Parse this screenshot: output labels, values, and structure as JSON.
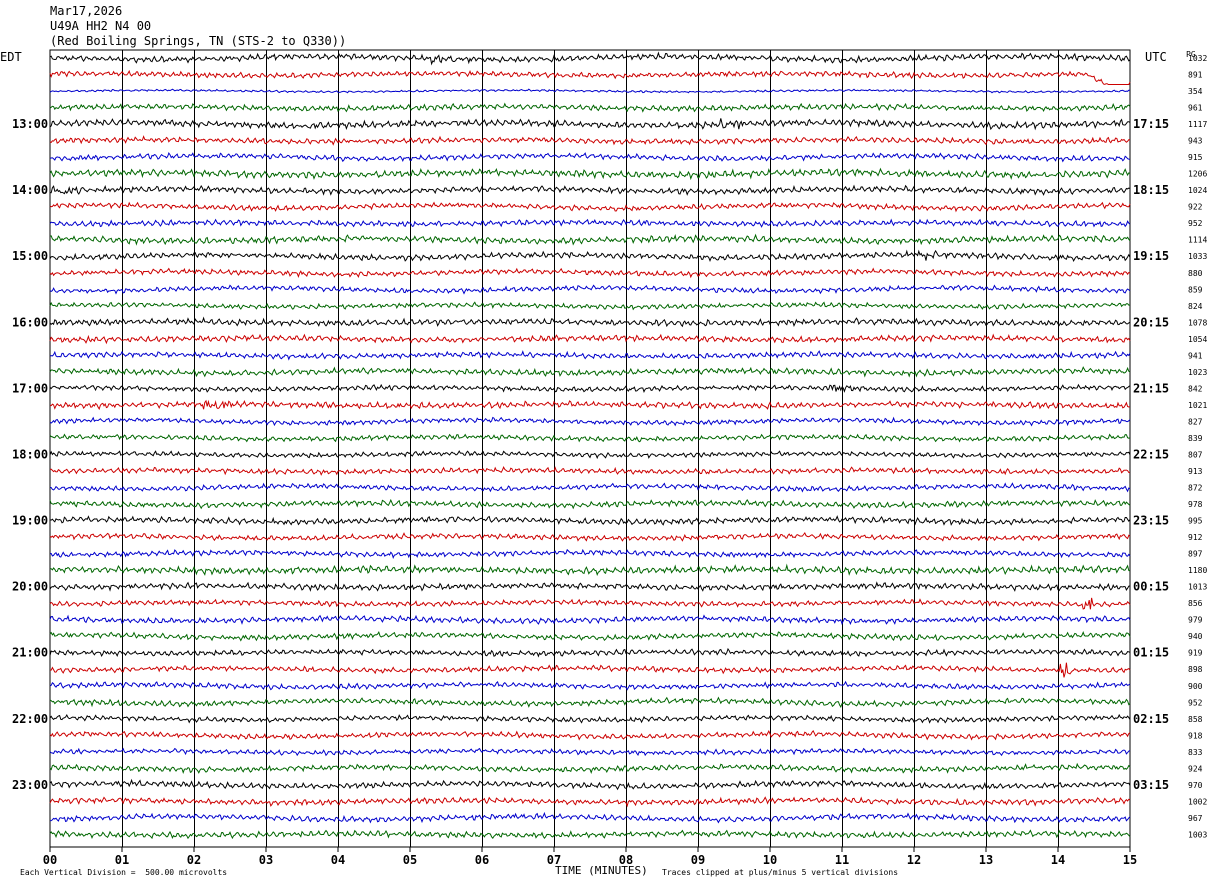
{
  "header": {
    "date": "Mar17,2026",
    "station": "U49A HH2 N4 00",
    "location": "(Red Boiling Springs, TN (STS-2 to Q330))",
    "left_tz": "EDT",
    "right_tz": "UTC",
    "corner_mark": "PG"
  },
  "footer": {
    "xlabel": "TIME (MINUTES)",
    "scale_note": "Each Vertical Division =  500.00 microvolts",
    "clip_note": "Traces clipped at plus/minus 5 vertical divisions"
  },
  "colors": {
    "cycle": [
      "#000000",
      "#cc0000",
      "#0000cc",
      "#006600"
    ],
    "grid": "#000000"
  },
  "chart_data": {
    "type": "line",
    "title": "U49A HH2 N4 00 helicorder, Mar17,2026",
    "xlabel": "TIME (MINUTES)",
    "xlim": [
      0,
      15
    ],
    "x_ticks": [
      "00",
      "01",
      "02",
      "03",
      "04",
      "05",
      "06",
      "07",
      "08",
      "09",
      "10",
      "11",
      "12",
      "13",
      "14",
      "15"
    ],
    "rows": 48,
    "row_minutes": 15,
    "left_hour_labels": [
      "13:00",
      "14:00",
      "15:00",
      "16:00",
      "17:00",
      "18:00",
      "19:00",
      "20:00",
      "21:00",
      "22:00",
      "23:00"
    ],
    "right_hour_labels": [
      "17:15",
      "18:15",
      "19:15",
      "20:15",
      "21:15",
      "22:15",
      "23:15",
      "00:15",
      "01:15",
      "02:15",
      "03:15"
    ],
    "row_rms": [
      1032,
      891,
      354,
      961,
      1117,
      943,
      915,
      1206,
      1024,
      922,
      952,
      1114,
      1033,
      880,
      859,
      824,
      1078,
      1054,
      941,
      1023,
      842,
      1021,
      827,
      839,
      807,
      913,
      872,
      978,
      995,
      912,
      897,
      1180,
      1013,
      856,
      979,
      940,
      919,
      898,
      900,
      952,
      858,
      918,
      833,
      924,
      970,
      1002,
      967,
      1003
    ],
    "events": [
      {
        "row": 0,
        "minute": 5.4,
        "note": "burst"
      },
      {
        "row": 1,
        "minute": 14.4,
        "note": "offset"
      },
      {
        "row": 4,
        "minute": 9.4,
        "note": "burst"
      },
      {
        "row": 8,
        "minute": 0.1,
        "note": "burst"
      },
      {
        "row": 12,
        "minute": 12.1,
        "note": "burst"
      },
      {
        "row": 20,
        "minute": 10.9,
        "note": "burst"
      },
      {
        "row": 21,
        "minute": 2.3,
        "note": "burst"
      },
      {
        "row": 33,
        "minute": 14.4,
        "note": "spike"
      },
      {
        "row": 37,
        "minute": 14.1,
        "note": "spike"
      }
    ]
  }
}
